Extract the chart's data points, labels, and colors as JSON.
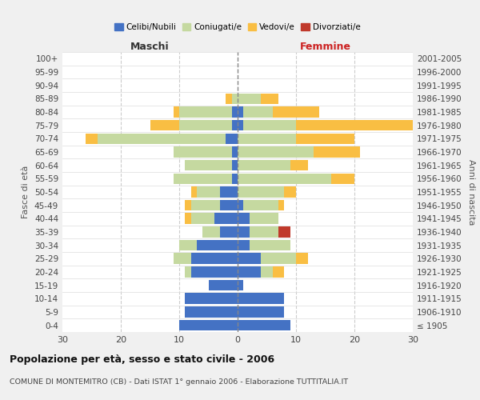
{
  "age_groups": [
    "100+",
    "95-99",
    "90-94",
    "85-89",
    "80-84",
    "75-79",
    "70-74",
    "65-69",
    "60-64",
    "55-59",
    "50-54",
    "45-49",
    "40-44",
    "35-39",
    "30-34",
    "25-29",
    "20-24",
    "15-19",
    "10-14",
    "5-9",
    "0-4"
  ],
  "birth_years": [
    "≤ 1905",
    "1906-1910",
    "1911-1915",
    "1916-1920",
    "1921-1925",
    "1926-1930",
    "1931-1935",
    "1936-1940",
    "1941-1945",
    "1946-1950",
    "1951-1955",
    "1956-1960",
    "1961-1965",
    "1966-1970",
    "1971-1975",
    "1976-1980",
    "1981-1985",
    "1986-1990",
    "1991-1995",
    "1996-2000",
    "2001-2005"
  ],
  "male": {
    "celibi": [
      0,
      0,
      0,
      0,
      1,
      1,
      2,
      1,
      1,
      1,
      3,
      3,
      4,
      3,
      7,
      8,
      8,
      5,
      9,
      9,
      10
    ],
    "coniugati": [
      0,
      0,
      0,
      1,
      9,
      9,
      22,
      10,
      8,
      10,
      4,
      5,
      4,
      3,
      3,
      3,
      1,
      0,
      0,
      0,
      0
    ],
    "vedovi": [
      0,
      0,
      0,
      1,
      1,
      5,
      2,
      0,
      0,
      0,
      1,
      1,
      1,
      0,
      0,
      0,
      0,
      0,
      0,
      0,
      0
    ],
    "divorziati": [
      0,
      0,
      0,
      0,
      0,
      0,
      0,
      0,
      0,
      0,
      0,
      0,
      0,
      0,
      0,
      0,
      0,
      0,
      0,
      0,
      0
    ]
  },
  "female": {
    "nubili": [
      0,
      0,
      0,
      0,
      1,
      1,
      0,
      0,
      0,
      0,
      0,
      1,
      2,
      2,
      2,
      4,
      4,
      1,
      8,
      8,
      9
    ],
    "coniugate": [
      0,
      0,
      0,
      4,
      5,
      9,
      10,
      13,
      9,
      16,
      8,
      6,
      5,
      5,
      7,
      6,
      2,
      0,
      0,
      0,
      0
    ],
    "vedove": [
      0,
      0,
      0,
      3,
      8,
      20,
      10,
      8,
      3,
      4,
      2,
      1,
      0,
      0,
      0,
      2,
      2,
      0,
      0,
      0,
      0
    ],
    "divorziate": [
      0,
      0,
      0,
      0,
      0,
      0,
      0,
      0,
      0,
      0,
      0,
      0,
      0,
      2,
      0,
      0,
      0,
      0,
      0,
      0,
      0
    ]
  },
  "colors": {
    "celibi_nubili": "#4472c4",
    "coniugati": "#c5d9a0",
    "vedovi": "#f9be43",
    "divorziati": "#c0392b"
  },
  "xlim": 30,
  "title": "Popolazione per età, sesso e stato civile - 2006",
  "subtitle": "COMUNE DI MONTEMITRO (CB) - Dati ISTAT 1° gennaio 2006 - Elaborazione TUTTITALIA.IT",
  "ylabel_left": "Maschi",
  "ylabel_right": "Femmine",
  "yaxis_label": "Fasce di età",
  "right_axis_label": "Anni di nascita",
  "bg_color": "#f0f0f0",
  "plot_bg_color": "#ffffff"
}
